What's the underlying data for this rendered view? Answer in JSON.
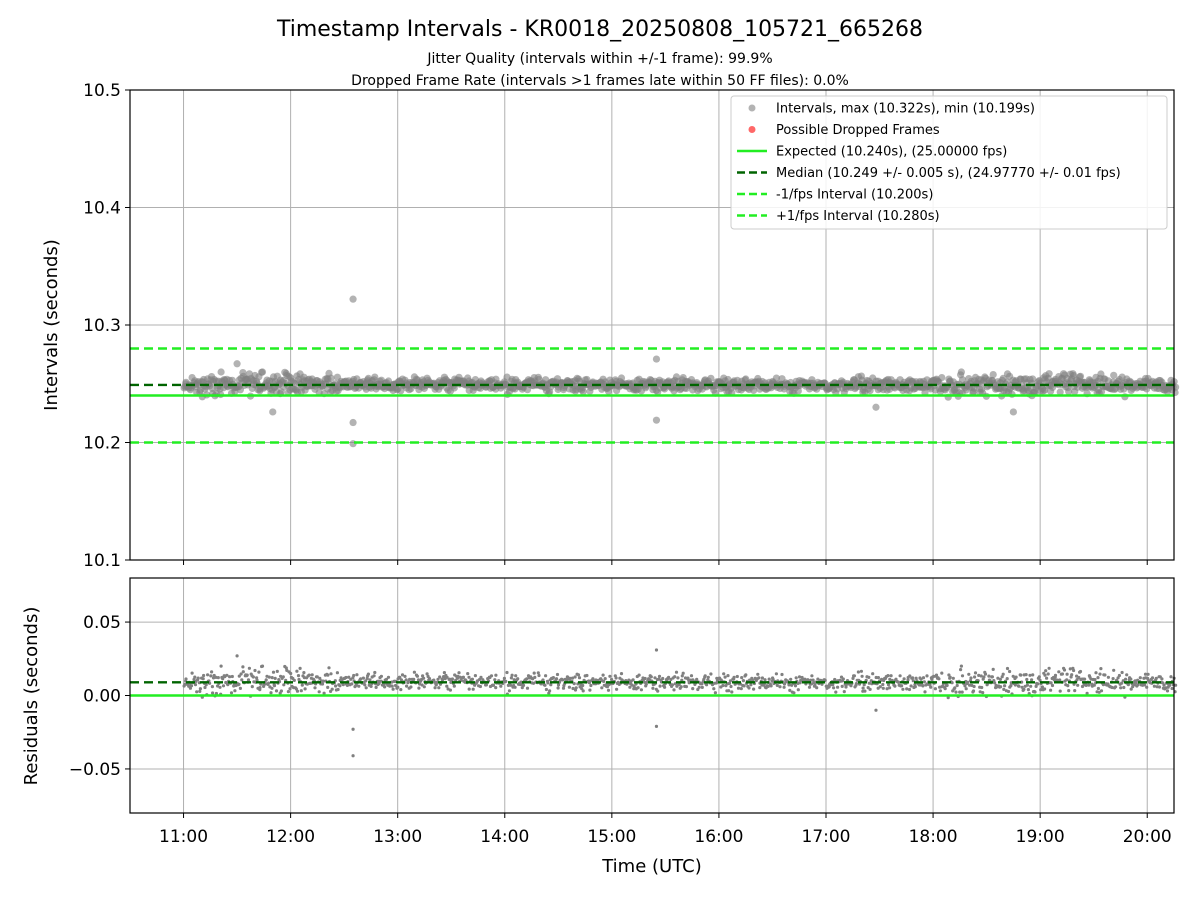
{
  "figure": {
    "title": "Timestamp Intervals - KR0018_20250808_105721_665268",
    "subtitle_1": "Jitter Quality (intervals within +/-1 frame): 99.9%",
    "subtitle_2": "Dropped Frame Rate (intervals >1 frames late within 50 FF files): 0.0%",
    "xlabel": "Time (UTC)"
  },
  "colors": {
    "scatter": "#808080",
    "dropped": "#ff4d4d",
    "expected": "#22ee22",
    "median": "#006400",
    "band": "#22ee22",
    "grid": "#b0b0b0"
  },
  "chart_data": [
    {
      "type": "scatter",
      "panel": "intervals",
      "ylabel": "Intervals (seconds)",
      "xlim": [
        "10:30",
        "20:15"
      ],
      "ylim": [
        10.1,
        10.5
      ],
      "x_ticks": [
        "11:00",
        "12:00",
        "13:00",
        "14:00",
        "15:00",
        "16:00",
        "17:00",
        "18:00",
        "19:00",
        "20:00"
      ],
      "y_ticks": [
        "10.1",
        "10.2",
        "10.3",
        "10.4",
        "10.5"
      ],
      "grid": true,
      "legend_placement": "top-right",
      "legend": [
        "Intervals, max (10.322s), min (10.199s)",
        "Possible Dropped Frames",
        "Expected (10.240s), (25.00000 fps)",
        "Median (10.249 +/- 0.005 s), (24.97770 +/- 0.01 fps)",
        "-1/fps Interval (10.200s)",
        "+1/fps Interval (10.280s)"
      ],
      "reference_lines": {
        "expected": 10.24,
        "median": 10.249,
        "minus_one_frame": 10.2,
        "plus_one_frame": 10.28
      },
      "interval_stats": {
        "max": 10.322,
        "min": 10.199,
        "median": 10.249,
        "spread": 0.005
      },
      "outliers": [
        {
          "x": "12:35",
          "y": 10.322
        },
        {
          "x": "12:35",
          "y": 10.217
        },
        {
          "x": "12:35",
          "y": 10.199
        },
        {
          "x": "15:25",
          "y": 10.271
        },
        {
          "x": "15:25",
          "y": 10.219
        },
        {
          "x": "17:28",
          "y": 10.23
        },
        {
          "x": "11:30",
          "y": 10.267
        },
        {
          "x": "11:50",
          "y": 10.226
        },
        {
          "x": "18:45",
          "y": 10.226
        }
      ],
      "dropped_frames": []
    },
    {
      "type": "scatter",
      "panel": "residuals",
      "ylabel": "Residuals (seconds)",
      "xlim": [
        "10:30",
        "20:15"
      ],
      "ylim": [
        -0.08,
        0.08
      ],
      "x_ticks": [
        "11:00",
        "12:00",
        "13:00",
        "14:00",
        "15:00",
        "16:00",
        "17:00",
        "18:00",
        "19:00",
        "20:00"
      ],
      "y_ticks": [
        "0.05",
        "0.00",
        "−0.05"
      ],
      "grid": true,
      "reference_lines": {
        "zero": 0.0,
        "median_offset": 0.009
      },
      "outliers": [
        {
          "x": "12:35",
          "y": -0.023
        },
        {
          "x": "12:35",
          "y": -0.041
        },
        {
          "x": "15:25",
          "y": 0.031
        },
        {
          "x": "15:25",
          "y": -0.021
        },
        {
          "x": "17:28",
          "y": -0.01
        },
        {
          "x": "11:30",
          "y": 0.027
        }
      ]
    }
  ]
}
